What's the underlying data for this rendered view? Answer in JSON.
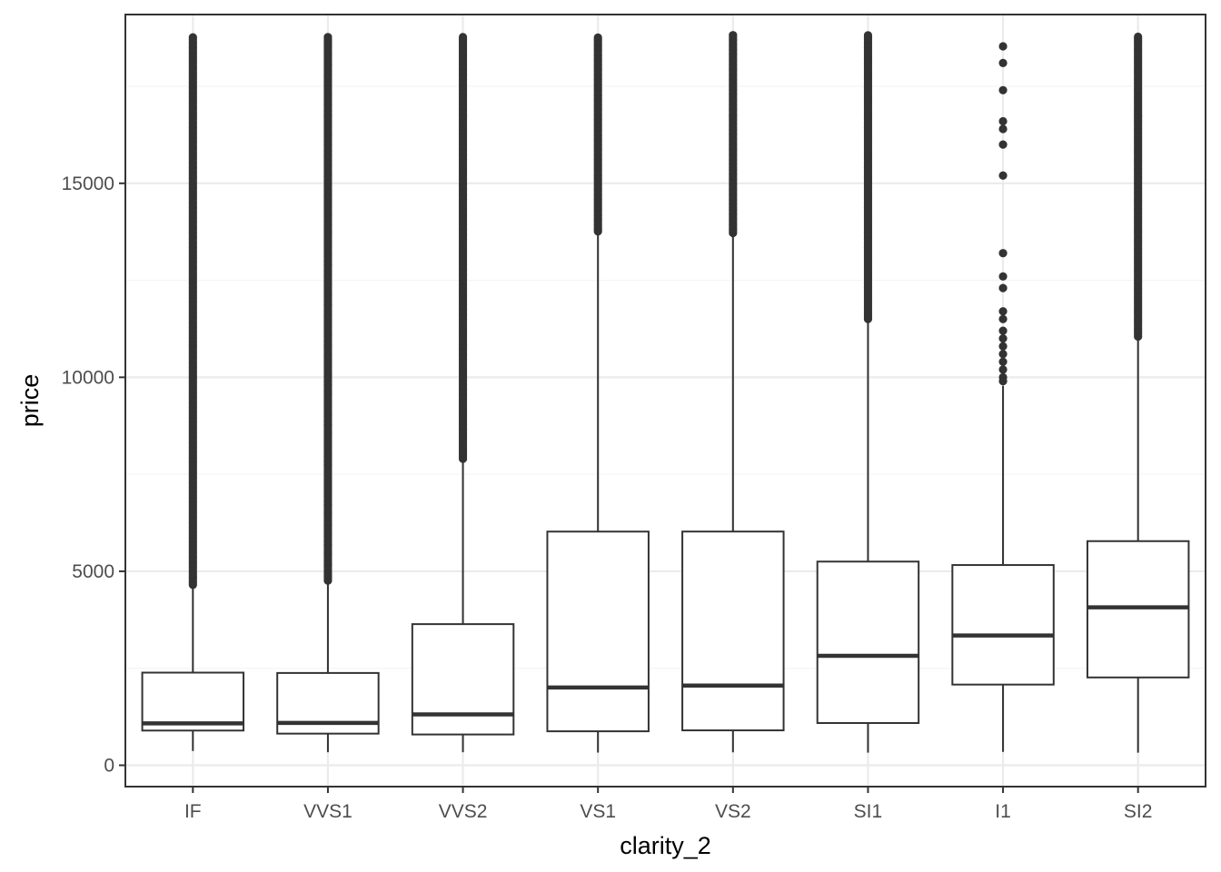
{
  "chart_data": {
    "type": "boxplot",
    "xlabel": "clarity_2",
    "ylabel": "price",
    "ylim": [
      -550,
      19350
    ],
    "y_ticks": [
      0,
      5000,
      10000,
      15000
    ],
    "y_minor_ticks": [
      2500,
      7500,
      12500,
      17500
    ],
    "grid": true,
    "legend": "none",
    "categories": [
      "IF",
      "VVS1",
      "VVS2",
      "VS1",
      "VS2",
      "SI1",
      "I1",
      "SI2"
    ],
    "boxes": [
      {
        "label": "IF",
        "min": 369,
        "q1": 895,
        "median": 1080,
        "q3": 2388,
        "whisker_high": 4620,
        "outlier_from": 4650,
        "outlier_max": 18806
      },
      {
        "label": "VVS1",
        "min": 336,
        "q1": 816,
        "median": 1093,
        "q3": 2379,
        "whisker_high": 4720,
        "outlier_from": 4760,
        "outlier_max": 18777
      },
      {
        "label": "VVS2",
        "min": 336,
        "q1": 794,
        "median": 1311,
        "q3": 3638,
        "whisker_high": 7880,
        "outlier_from": 7900,
        "outlier_max": 18768
      },
      {
        "label": "VS1",
        "min": 327,
        "q1": 876,
        "median": 2005,
        "q3": 6023,
        "whisker_high": 13740,
        "outlier_from": 13760,
        "outlier_max": 18795
      },
      {
        "label": "VS2",
        "min": 334,
        "q1": 900,
        "median": 2054,
        "q3": 6024,
        "whisker_high": 13700,
        "outlier_from": 13720,
        "outlier_max": 18823
      },
      {
        "label": "SI1",
        "min": 326,
        "q1": 1089,
        "median": 2822,
        "q3": 5250,
        "whisker_high": 11490,
        "outlier_from": 11500,
        "outlier_max": 18818
      },
      {
        "label": "I1",
        "min": 345,
        "q1": 2080,
        "median": 3344,
        "q3": 5161,
        "whisker_high": 9780,
        "outlier_from": 9800,
        "outlier_max": 18531
      },
      {
        "label": "SI2",
        "min": 326,
        "q1": 2264,
        "median": 4072,
        "q3": 5777,
        "whisker_high": 11020,
        "outlier_from": 11050,
        "outlier_max": 18804
      }
    ],
    "sparse_outliers": {
      "I1": [
        9900,
        10000,
        10200,
        10400,
        10600,
        10800,
        11000,
        11200,
        11500,
        11700,
        12300,
        12600,
        13200,
        15200,
        16000,
        16400,
        16600,
        17400,
        18100,
        18531
      ]
    },
    "colors": {
      "panel_border": "#333333",
      "grid_major": "#ebebeb",
      "grid_minor": "#f5f5f5",
      "box_line": "#333333",
      "outlier": "#333333"
    }
  }
}
